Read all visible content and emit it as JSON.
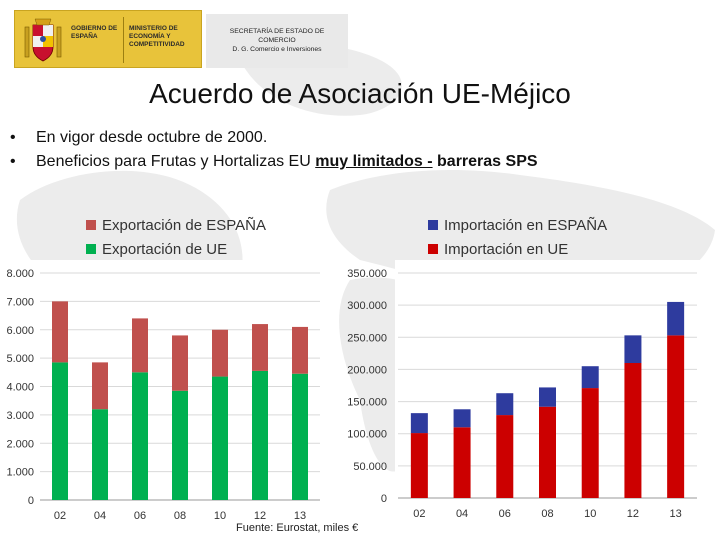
{
  "header": {
    "gobierno": "GOBIERNO DE ESPAÑA",
    "ministerio": "MINISTERIO DE ECONOMÍA Y COMPETITIVIDAD",
    "secretaria_line1": "SECRETARÍA DE ESTADO DE",
    "secretaria_line2": "COMERCIO",
    "secretaria_line3": "D. G. Comercio e Inversiones"
  },
  "title": "Acuerdo de Asociación UE-Méjico",
  "bullets": {
    "b1": "En vigor desde octubre de 2000.",
    "b2_pre": "Beneficios para Frutas y Hortalizas EU ",
    "b2_ul": "muy limitados -",
    "b2_post": " barreras SPS"
  },
  "source": "Fuente: Eurostat, miles €",
  "colors": {
    "export_spain": "#c0504d",
    "export_ue": "#00b050",
    "import_spain": "#2e3b9e",
    "import_ue": "#cc0000"
  },
  "chart_data": [
    {
      "type": "bar",
      "stacked": true,
      "title": "",
      "categories": [
        "02",
        "04",
        "06",
        "08",
        "10",
        "12",
        "13"
      ],
      "ylim": [
        0,
        8000
      ],
      "yticks": [
        "0",
        "1.000",
        "2.000",
        "3.000",
        "4.000",
        "5.000",
        "6.000",
        "7.000",
        "8.000"
      ],
      "series": [
        {
          "name": "Exportación de UE",
          "values": [
            4850,
            3200,
            4500,
            3850,
            4350,
            4550,
            4450
          ]
        },
        {
          "name": "Exportación de ESPAÑA",
          "values": [
            2150,
            1650,
            1900,
            1950,
            1650,
            1650,
            1650
          ]
        }
      ],
      "legend": [
        "Exportación de ESPAÑA",
        "Exportación de UE"
      ]
    },
    {
      "type": "bar",
      "stacked": true,
      "title": "",
      "categories": [
        "02",
        "04",
        "06",
        "08",
        "10",
        "12",
        "13"
      ],
      "ylim": [
        0,
        350000
      ],
      "yticks": [
        "0",
        "50.000",
        "100.000",
        "150.000",
        "200.000",
        "250.000",
        "300.000",
        "350.000"
      ],
      "series": [
        {
          "name": "Importación en UE",
          "values": [
            101000,
            110000,
            129000,
            142000,
            171000,
            210000,
            253000
          ]
        },
        {
          "name": "Importación en ESPAÑA",
          "values": [
            31000,
            28000,
            34000,
            30000,
            34000,
            43000,
            52000
          ]
        }
      ],
      "legend": [
        "Importación en ESPAÑA",
        "Importación en UE"
      ]
    }
  ]
}
